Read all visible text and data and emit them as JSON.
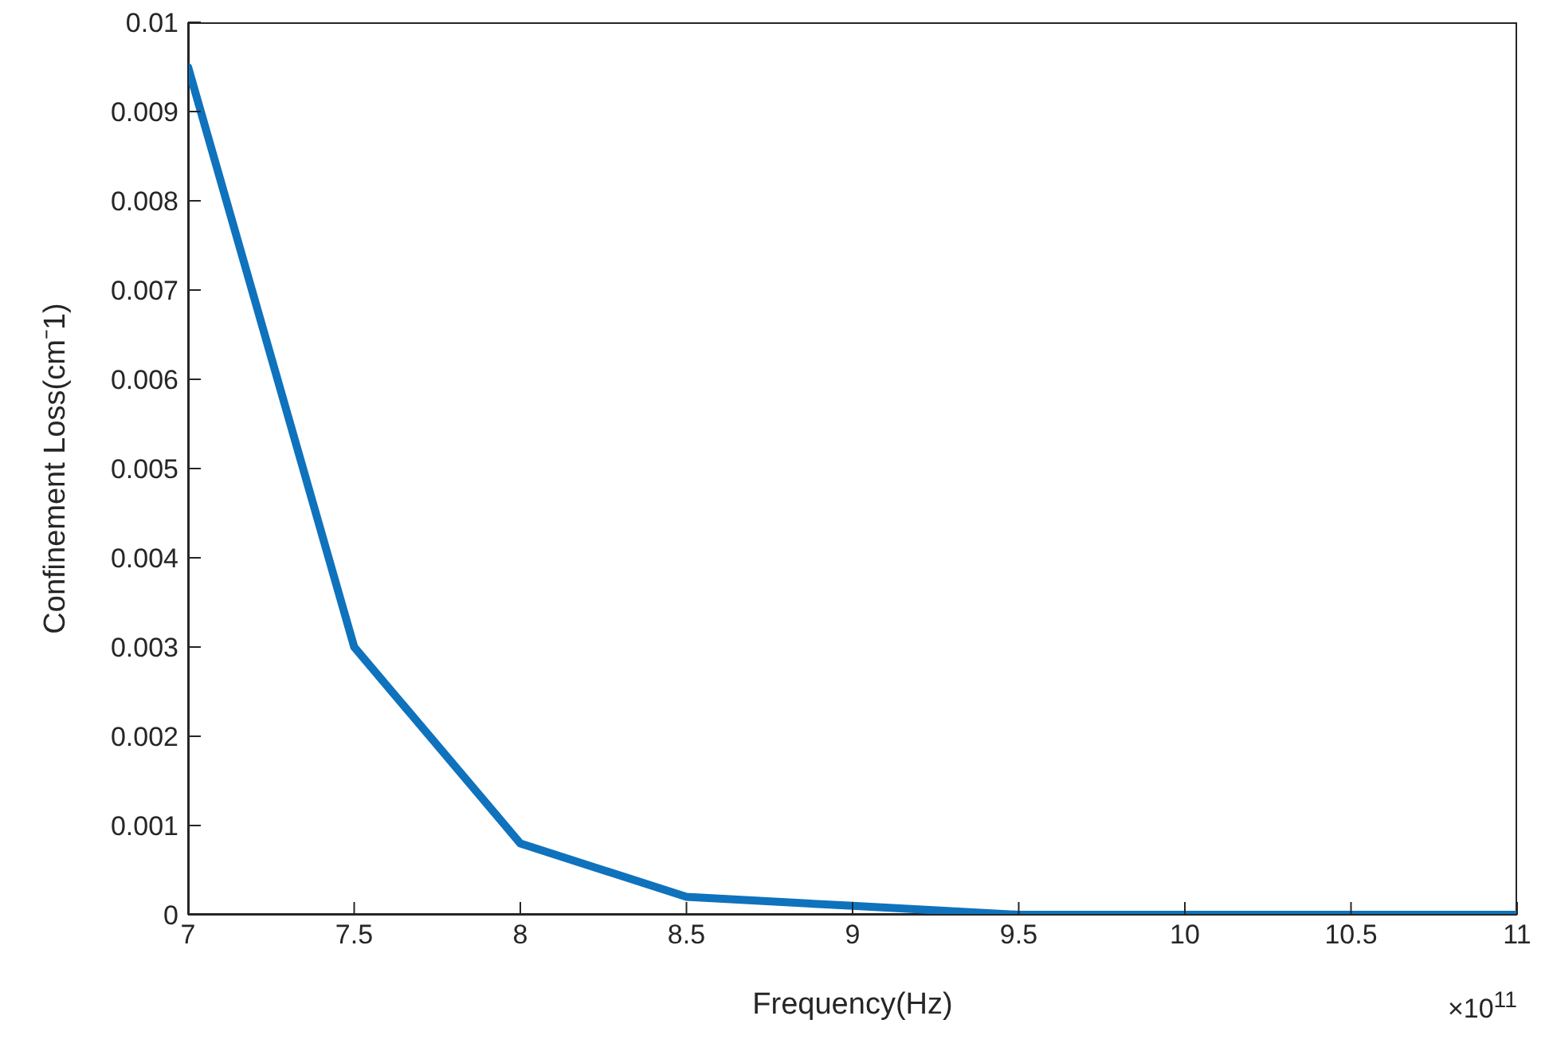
{
  "chart_data": {
    "type": "line",
    "xlabel": "Frequency(Hz)",
    "ylabel": "Confinement Loss(cm⁻1)",
    "annotations": [
      "×10$^{11}$"
    ],
    "x": [
      7,
      7.5,
      8,
      8.5,
      9,
      9.5,
      10,
      10.5,
      11
    ],
    "series": [
      {
        "color": "#0f72bd",
        "values": [
          0.0095,
          0.003,
          0.0008,
          0.0002,
          0.0001,
          0,
          0,
          0,
          0
        ]
      }
    ],
    "xlim": [
      7,
      11
    ],
    "xticks": [
      7,
      7.5,
      8,
      8.5,
      9,
      9.5,
      10,
      10.5,
      11
    ],
    "ylim": [
      0,
      0.01
    ],
    "yticks": [
      0,
      0.001,
      0.002,
      0.003,
      0.004,
      0.005,
      0.006,
      0.007,
      0.008,
      0.009,
      0.01
    ],
    "grid": false,
    "legend": false,
    "marker": "none",
    "line_style": "solid"
  }
}
